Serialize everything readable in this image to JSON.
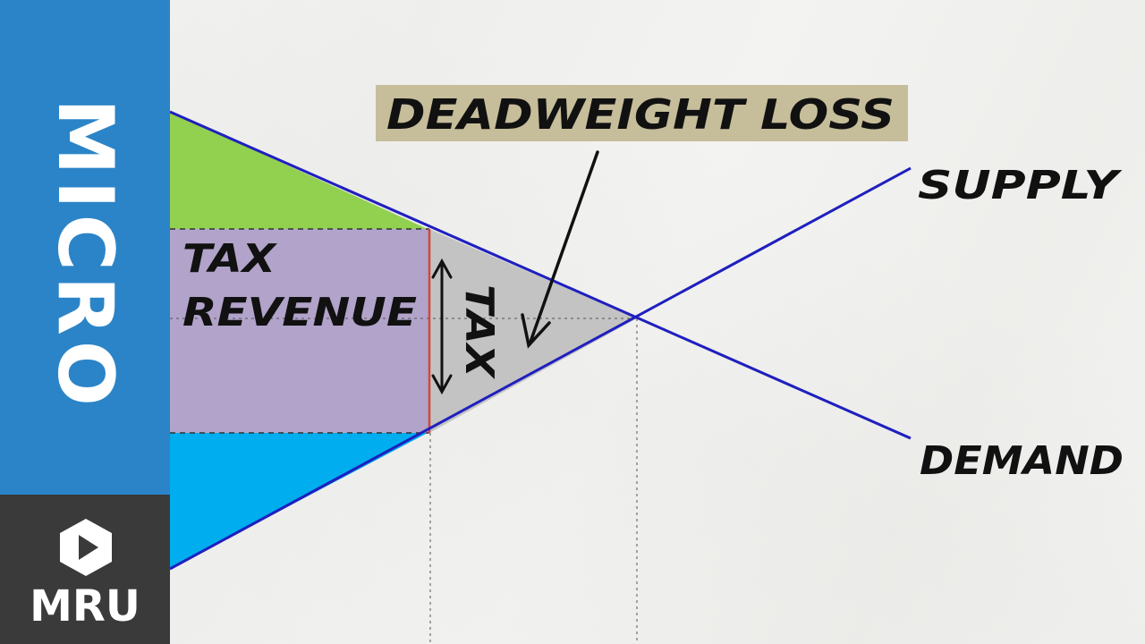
{
  "sidebar": {
    "brand_text": "MICRO",
    "logo_text": "MRU",
    "logo_icon": "play-hexagon-icon",
    "colors": {
      "top": "#2b84c7",
      "bottom": "#3a3a3a"
    }
  },
  "diagram": {
    "labels": {
      "supply": "SUPPLY",
      "demand": "DEMAND",
      "tax_revenue_line1": "TAX",
      "tax_revenue_line2": "REVENUE",
      "tax": "TAX",
      "deadweight_loss": "DEADWEIGHT LOSS"
    },
    "colors": {
      "curves": "#1f1fbf",
      "consumer_surplus": "#92d050",
      "tax_revenue": "#b1a3c9",
      "deadweight_loss": "#c3c3c3",
      "producer_surplus": "#00adef",
      "callout_background": "#c6bd9a",
      "tax_wedge_line": "#d8453a"
    }
  }
}
